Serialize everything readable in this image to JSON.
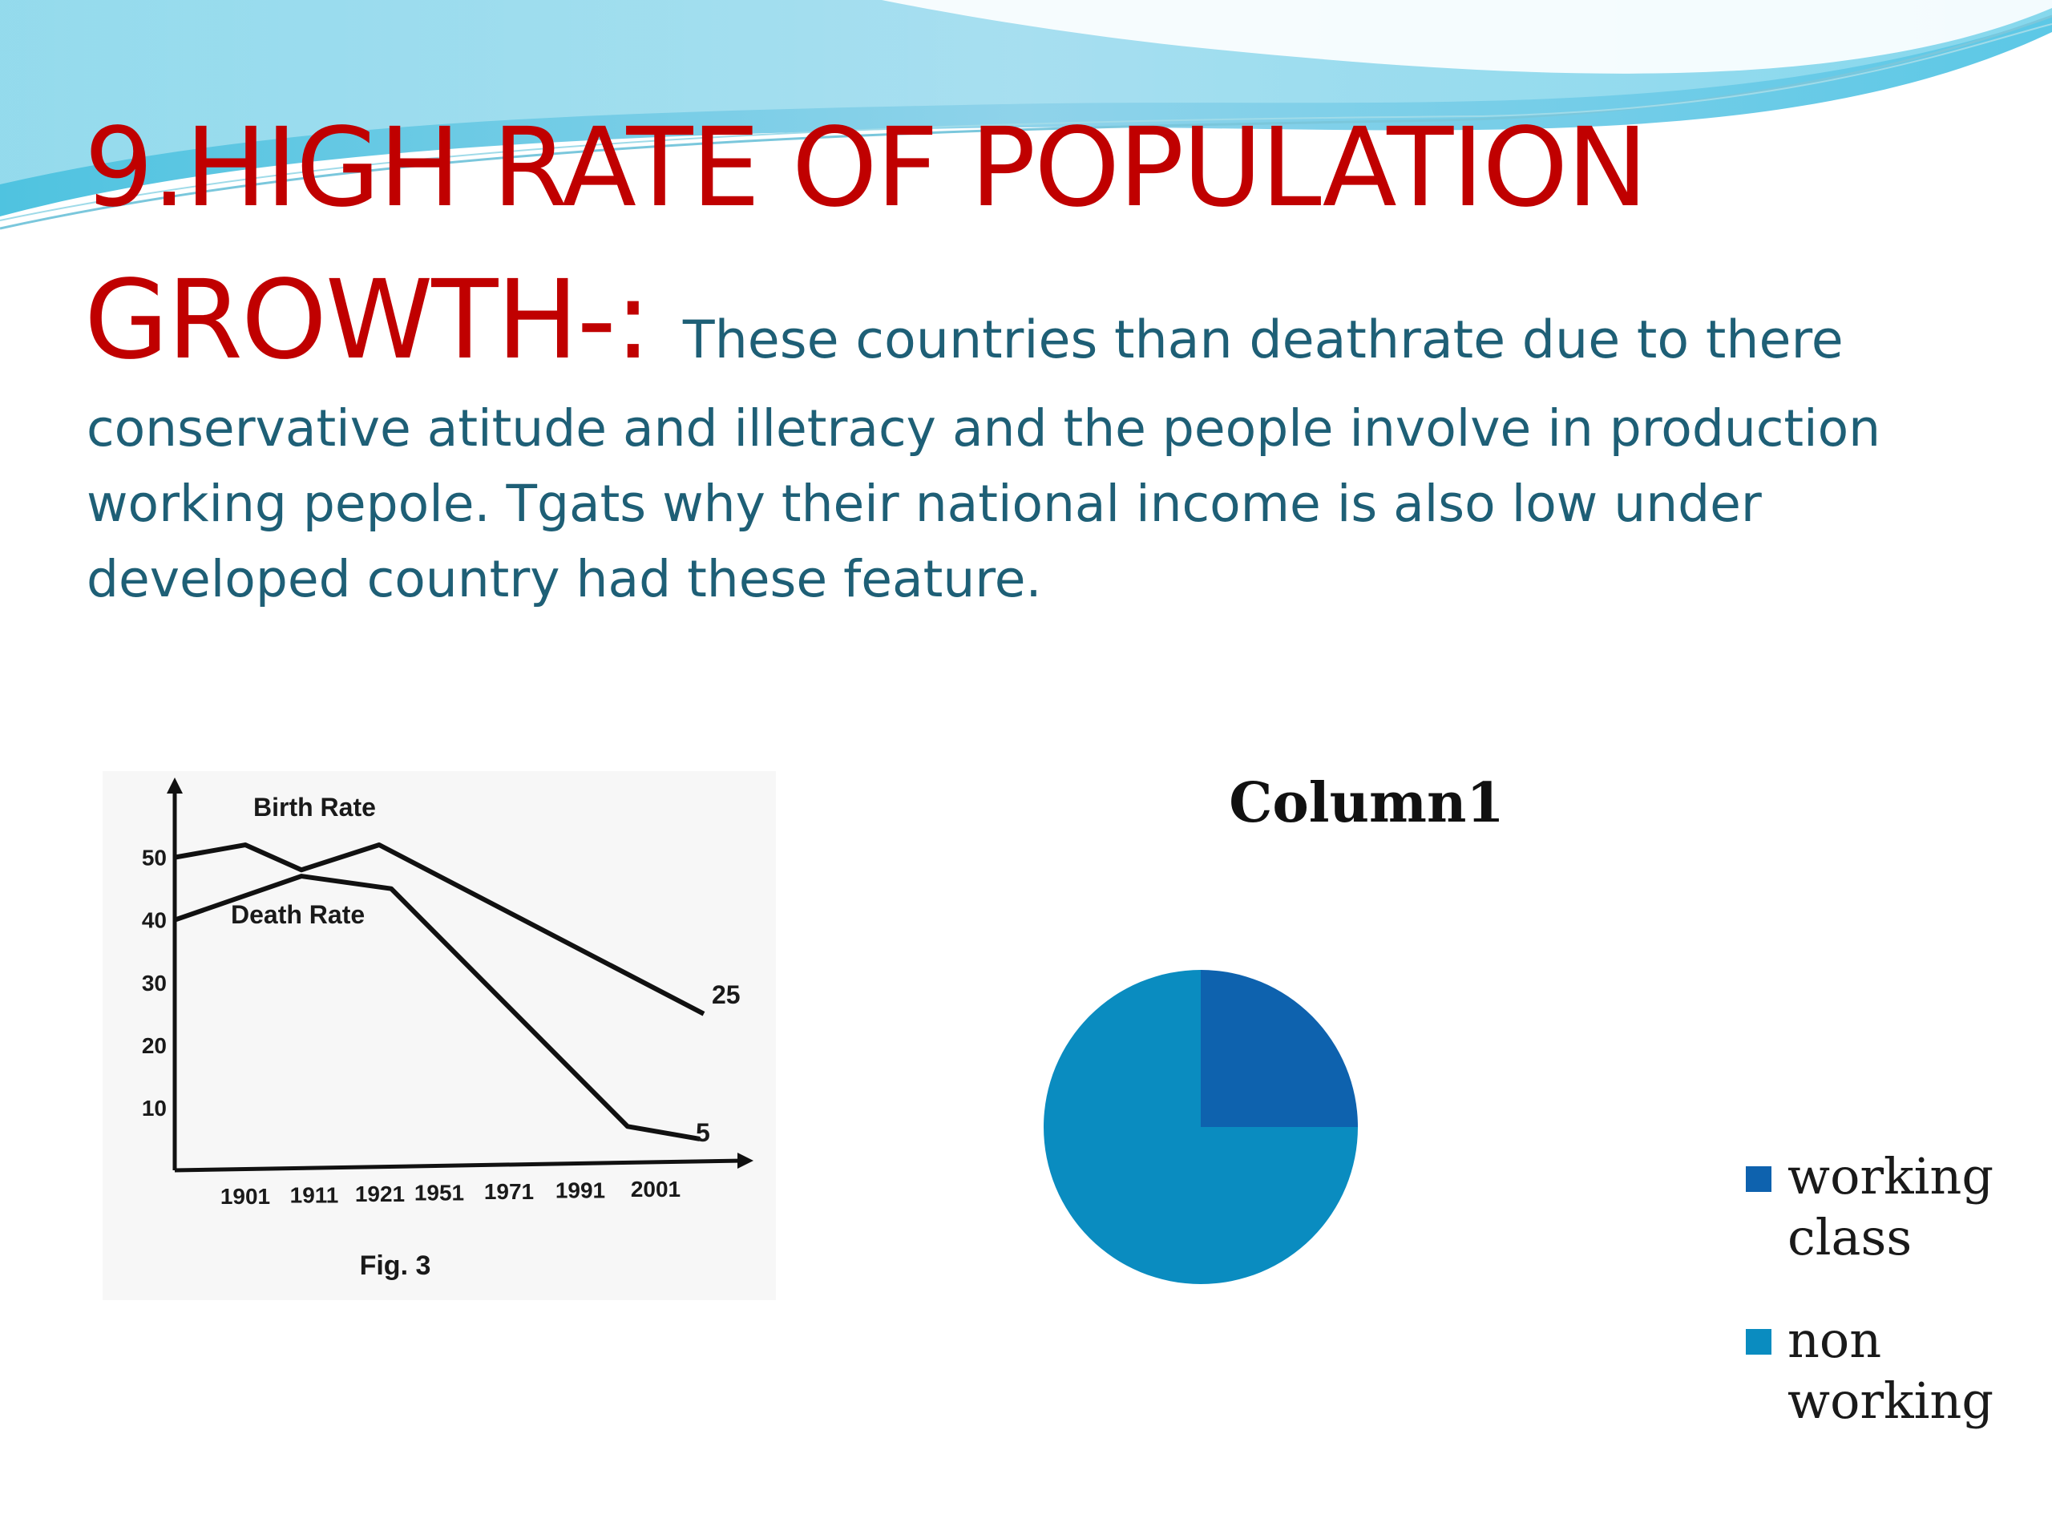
{
  "slide": {
    "title_line1": "9.HIGH RATE OF POPULATION",
    "title_line2": "GROWTH-:",
    "body_inline": "These countries than deathrate due to there",
    "body_lines": [
      "conservative atitude and illetracy and the people involve in production",
      "working pepole. Tgats why their national income is also low under",
      "developed country had these feature."
    ],
    "colors": {
      "title": "#c00000",
      "body": "#1e5f76"
    }
  },
  "figure": {
    "caption": "Fig. 3",
    "series_labels": {
      "birth": "Birth Rate",
      "death": "Death Rate"
    },
    "end_labels": {
      "birth": "25",
      "death": "5"
    }
  },
  "chart_data": [
    {
      "type": "line",
      "title": "",
      "xlabel": "",
      "ylabel": "",
      "categories": [
        "1901",
        "1911",
        "1921",
        "1951",
        "1971",
        "1991",
        "2001"
      ],
      "y_ticks": [
        "10",
        "20",
        "30",
        "40",
        "50"
      ],
      "ylim": [
        0,
        60
      ],
      "grid": false,
      "series": [
        {
          "name": "Birth Rate",
          "x": [
            1901,
            1911,
            1921,
            1931,
            2001
          ],
          "values": [
            50,
            52,
            48,
            52,
            25
          ]
        },
        {
          "name": "Death Rate",
          "x": [
            1901,
            1921,
            1931,
            1991,
            2001
          ],
          "values": [
            40,
            47,
            45,
            7,
            5
          ]
        }
      ]
    },
    {
      "type": "pie",
      "title": "Column1",
      "legend_position": "right",
      "slices": [
        {
          "name": "working class",
          "value": 25,
          "color": "#0e62ae"
        },
        {
          "name": "non working",
          "value": 75,
          "color": "#0a8cc0"
        }
      ]
    }
  ]
}
